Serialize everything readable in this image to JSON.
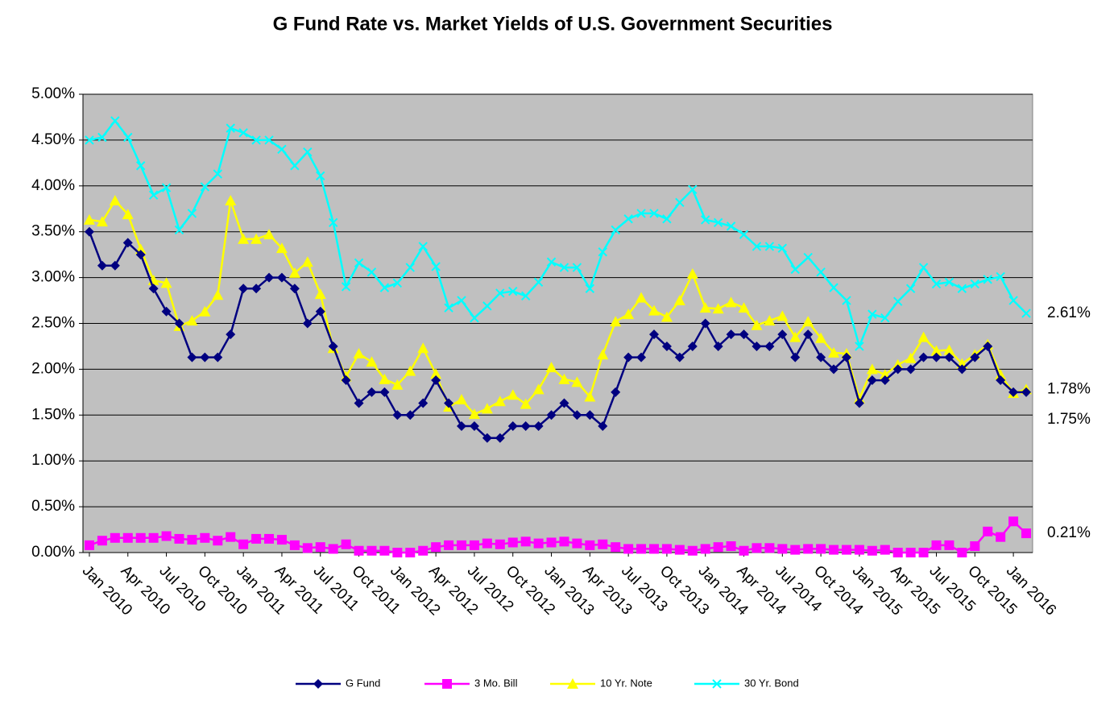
{
  "chart_data": {
    "type": "line",
    "title": "G Fund Rate vs. Market Yields of U.S. Government Securities",
    "categories": [
      "Jan 2010",
      null,
      null,
      "Apr 2010",
      null,
      null,
      "Jul 2010",
      null,
      null,
      "Oct 2010",
      null,
      null,
      "Jan 2011",
      null,
      null,
      "Apr 2011",
      null,
      null,
      "Jul 2011",
      null,
      null,
      "Oct 2011",
      null,
      null,
      "Jan 2012",
      null,
      null,
      "Apr 2012",
      null,
      null,
      "Jul 2012",
      null,
      null,
      "Oct 2012",
      null,
      null,
      "Jan 2013",
      null,
      null,
      "Apr 2013",
      null,
      null,
      "Jul 2013",
      null,
      null,
      "Oct 2013",
      null,
      null,
      "Jan 2014",
      null,
      null,
      "Apr 2014",
      null,
      null,
      "Jul 2014",
      null,
      null,
      "Oct 2014",
      null,
      null,
      "Jan 2015",
      null,
      null,
      "Apr 2015",
      null,
      null,
      "Jul 2015",
      null,
      null,
      "Oct 2015",
      null,
      null,
      "Jan 2016",
      null
    ],
    "series": [
      {
        "name": "G Fund",
        "color": "#000080",
        "marker": "diamond",
        "values": [
          3.5,
          3.13,
          3.13,
          3.38,
          3.25,
          2.88,
          2.63,
          2.5,
          2.13,
          2.13,
          2.13,
          2.38,
          2.88,
          2.88,
          3.0,
          3.0,
          2.88,
          2.5,
          2.63,
          2.25,
          1.88,
          1.63,
          1.75,
          1.75,
          1.5,
          1.5,
          1.63,
          1.88,
          1.63,
          1.38,
          1.38,
          1.25,
          1.25,
          1.38,
          1.38,
          1.38,
          1.5,
          1.63,
          1.5,
          1.5,
          1.38,
          1.75,
          2.13,
          2.13,
          2.38,
          2.25,
          2.13,
          2.25,
          2.5,
          2.25,
          2.38,
          2.38,
          2.25,
          2.25,
          2.38,
          2.13,
          2.38,
          2.13,
          2.0,
          2.13,
          1.63,
          1.88,
          1.88,
          2.0,
          2.0,
          2.13,
          2.13,
          2.13,
          2.0,
          2.13,
          2.25,
          1.88,
          1.75,
          1.75
        ],
        "value_labels": [
          null,
          null,
          null,
          null,
          null,
          null,
          null,
          null,
          null,
          null,
          null,
          null,
          null,
          null,
          null,
          null,
          null,
          null,
          null,
          null,
          null,
          null,
          null,
          null,
          null,
          null,
          null,
          null,
          null,
          null,
          null,
          null,
          null,
          null,
          null,
          null,
          null,
          null,
          null,
          null,
          null,
          null,
          null,
          null,
          null,
          null,
          null,
          null,
          null,
          null,
          null,
          null,
          null,
          null,
          null,
          null,
          null,
          null,
          null,
          null,
          null,
          null,
          null,
          null,
          null,
          null,
          null,
          null,
          null,
          null,
          null,
          null,
          null,
          "1.75%"
        ]
      },
      {
        "name": "3 Mo. Bill",
        "color": "#ff00ff",
        "marker": "square",
        "values": [
          0.08,
          0.13,
          0.16,
          0.16,
          0.16,
          0.16,
          0.18,
          0.15,
          0.14,
          0.16,
          0.13,
          0.17,
          0.09,
          0.15,
          0.15,
          0.14,
          0.08,
          0.05,
          0.06,
          0.04,
          0.09,
          0.02,
          0.02,
          0.02,
          0.0,
          0.0,
          0.02,
          0.06,
          0.08,
          0.08,
          0.08,
          0.1,
          0.09,
          0.11,
          0.12,
          0.1,
          0.11,
          0.12,
          0.1,
          0.08,
          0.09,
          0.06,
          0.04,
          0.04,
          0.04,
          0.04,
          0.03,
          0.02,
          0.04,
          0.06,
          0.07,
          0.02,
          0.05,
          0.05,
          0.04,
          0.03,
          0.04,
          0.04,
          0.03,
          0.03,
          0.03,
          0.02,
          0.03,
          0.0,
          0.0,
          0.0,
          0.08,
          0.08,
          0.0,
          0.07,
          0.23,
          0.17,
          0.34,
          0.21
        ],
        "value_labels": [
          null,
          null,
          null,
          null,
          null,
          null,
          null,
          null,
          null,
          null,
          null,
          null,
          null,
          null,
          null,
          null,
          null,
          null,
          null,
          null,
          null,
          null,
          null,
          null,
          null,
          null,
          null,
          null,
          null,
          null,
          null,
          null,
          null,
          null,
          null,
          null,
          null,
          null,
          null,
          null,
          null,
          null,
          null,
          null,
          null,
          null,
          null,
          null,
          null,
          null,
          null,
          null,
          null,
          null,
          null,
          null,
          null,
          null,
          null,
          null,
          null,
          null,
          null,
          null,
          null,
          null,
          null,
          null,
          null,
          null,
          null,
          null,
          null,
          "0.21%"
        ]
      },
      {
        "name": "10 Yr. Note",
        "color": "#ffff00",
        "marker": "triangle",
        "values": [
          3.63,
          3.61,
          3.84,
          3.69,
          3.31,
          2.97,
          2.94,
          2.47,
          2.53,
          2.63,
          2.81,
          3.84,
          3.42,
          3.42,
          3.47,
          3.32,
          3.05,
          3.17,
          2.82,
          2.23,
          1.92,
          2.17,
          2.08,
          1.89,
          1.83,
          1.98,
          2.23,
          1.95,
          1.59,
          1.67,
          1.51,
          1.57,
          1.65,
          1.72,
          1.62,
          1.78,
          2.02,
          1.89,
          1.86,
          1.7,
          2.16,
          2.52,
          2.6,
          2.78,
          2.64,
          2.57,
          2.75,
          3.04,
          2.67,
          2.66,
          2.73,
          2.67,
          2.48,
          2.53,
          2.58,
          2.35,
          2.52,
          2.34,
          2.18,
          2.17,
          1.68,
          2.0,
          1.94,
          2.05,
          2.12,
          2.35,
          2.2,
          2.21,
          2.06,
          2.16,
          2.27,
          1.94,
          1.74,
          1.78
        ],
        "value_labels": [
          null,
          null,
          null,
          null,
          null,
          null,
          null,
          null,
          null,
          null,
          null,
          null,
          null,
          null,
          null,
          null,
          null,
          null,
          null,
          null,
          null,
          null,
          null,
          null,
          null,
          null,
          null,
          null,
          null,
          null,
          null,
          null,
          null,
          null,
          null,
          null,
          null,
          null,
          null,
          null,
          null,
          null,
          null,
          null,
          null,
          null,
          null,
          null,
          null,
          null,
          null,
          null,
          null,
          null,
          null,
          null,
          null,
          null,
          null,
          null,
          null,
          null,
          null,
          null,
          null,
          null,
          null,
          null,
          null,
          null,
          null,
          null,
          null,
          "1.78%"
        ]
      },
      {
        "name": "30 Yr. Bond",
        "color": "#00ffff",
        "marker": "x",
        "values": [
          4.5,
          4.53,
          4.71,
          4.53,
          4.22,
          3.9,
          3.98,
          3.52,
          3.7,
          3.99,
          4.13,
          4.63,
          4.58,
          4.5,
          4.5,
          4.4,
          4.22,
          4.37,
          4.11,
          3.6,
          2.9,
          3.16,
          3.06,
          2.89,
          2.94,
          3.11,
          3.34,
          3.12,
          2.67,
          2.75,
          2.56,
          2.69,
          2.83,
          2.85,
          2.8,
          2.95,
          3.17,
          3.11,
          3.11,
          2.88,
          3.28,
          3.52,
          3.64,
          3.7,
          3.7,
          3.64,
          3.82,
          3.96,
          3.63,
          3.6,
          3.56,
          3.47,
          3.34,
          3.34,
          3.32,
          3.09,
          3.22,
          3.06,
          2.89,
          2.75,
          2.25,
          2.6,
          2.56,
          2.74,
          2.88,
          3.11,
          2.93,
          2.95,
          2.88,
          2.93,
          2.98,
          3.01,
          2.75,
          2.61
        ],
        "value_labels": [
          null,
          null,
          null,
          null,
          null,
          null,
          null,
          null,
          null,
          null,
          null,
          null,
          null,
          null,
          null,
          null,
          null,
          null,
          null,
          null,
          null,
          null,
          null,
          null,
          null,
          null,
          null,
          null,
          null,
          null,
          null,
          null,
          null,
          null,
          null,
          null,
          null,
          null,
          null,
          null,
          null,
          null,
          null,
          null,
          null,
          null,
          null,
          null,
          null,
          null,
          null,
          null,
          null,
          null,
          null,
          null,
          null,
          null,
          null,
          null,
          null,
          null,
          null,
          null,
          null,
          null,
          null,
          null,
          null,
          null,
          null,
          null,
          null,
          "2.61%"
        ]
      }
    ],
    "ylim": [
      0,
      5
    ],
    "yticks": [
      {
        "value": 0,
        "label": "0.00%"
      },
      {
        "value": 0.5,
        "label": "0.50%"
      },
      {
        "value": 1,
        "label": "1.00%"
      },
      {
        "value": 1.5,
        "label": "1.50%"
      },
      {
        "value": 2,
        "label": "2.00%"
      },
      {
        "value": 2.5,
        "label": "2.50%"
      },
      {
        "value": 3,
        "label": "3.00%"
      },
      {
        "value": 3.5,
        "label": "3.50%"
      },
      {
        "value": 4,
        "label": "4.00%"
      },
      {
        "value": 4.5,
        "label": "4.50%"
      },
      {
        "value": 5,
        "label": "5.00%"
      }
    ],
    "grid": true,
    "legend": "bottom"
  }
}
